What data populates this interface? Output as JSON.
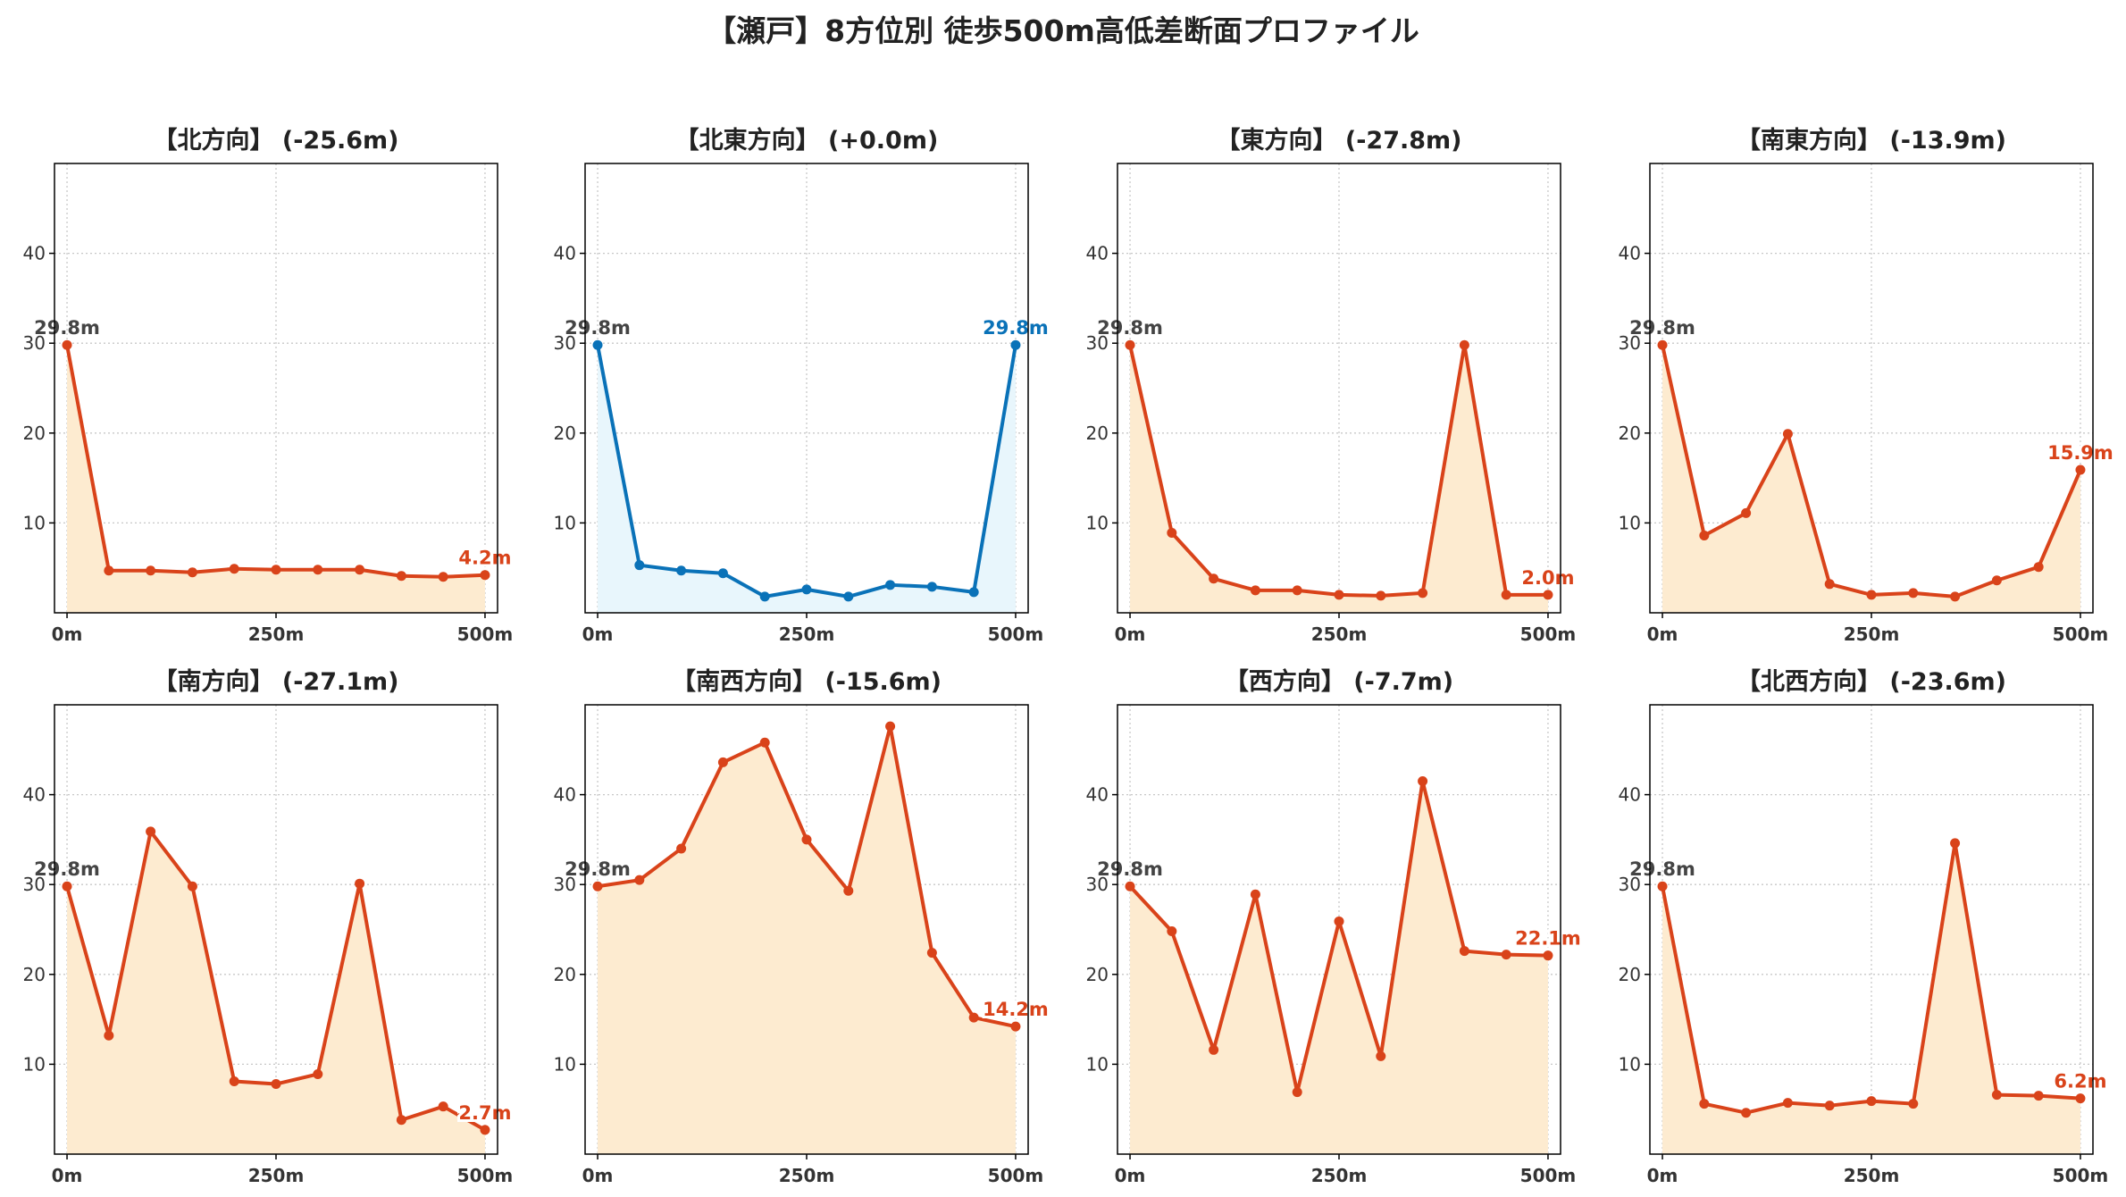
{
  "title": "【瀬戸】8方位別 徒歩500m高低差断面プロファイル",
  "colors": {
    "down_line": "#d9431a",
    "down_fill": "#fdebd0",
    "flat_line": "#0a72b8",
    "flat_fill": "#e8f6fc",
    "start_label": "#444444"
  },
  "chart_data": [
    {
      "type": "area",
      "title": "【北方向】 (-25.6m)",
      "tone": "down",
      "x": [
        0,
        50,
        100,
        150,
        200,
        250,
        300,
        350,
        400,
        450,
        500
      ],
      "y": [
        29.8,
        4.7,
        4.7,
        4.5,
        4.9,
        4.8,
        4.8,
        4.8,
        4.1,
        4.0,
        4.2
      ],
      "start_label": "29.8m",
      "end_label": "4.2m",
      "xticks": [
        "0m",
        "250m",
        "500m"
      ],
      "yticks": [
        10,
        20,
        30,
        40
      ],
      "ylim": [
        0,
        50
      ],
      "xlim": [
        -15,
        515
      ],
      "grid": true
    },
    {
      "type": "area",
      "title": "【北東方向】 (+0.0m)",
      "tone": "flat",
      "x": [
        0,
        50,
        100,
        150,
        200,
        250,
        300,
        350,
        400,
        450,
        500
      ],
      "y": [
        29.8,
        5.3,
        4.7,
        4.4,
        1.8,
        2.6,
        1.8,
        3.1,
        2.9,
        2.3,
        29.8
      ],
      "start_label": "29.8m",
      "end_label": "29.8m",
      "xticks": [
        "0m",
        "250m",
        "500m"
      ],
      "yticks": [
        10,
        20,
        30,
        40
      ],
      "ylim": [
        0,
        50
      ],
      "xlim": [
        -15,
        515
      ],
      "grid": true
    },
    {
      "type": "area",
      "title": "【東方向】 (-27.8m)",
      "tone": "down",
      "x": [
        0,
        50,
        100,
        150,
        200,
        250,
        300,
        350,
        400,
        450,
        500
      ],
      "y": [
        29.8,
        8.9,
        3.8,
        2.5,
        2.5,
        2.0,
        1.9,
        2.2,
        29.8,
        2.0,
        2.0
      ],
      "start_label": "29.8m",
      "end_label": "2.0m",
      "xticks": [
        "0m",
        "250m",
        "500m"
      ],
      "yticks": [
        10,
        20,
        30,
        40
      ],
      "ylim": [
        0,
        50
      ],
      "xlim": [
        -15,
        515
      ],
      "grid": true
    },
    {
      "type": "area",
      "title": "【南東方向】 (-13.9m)",
      "tone": "down",
      "x": [
        0,
        50,
        100,
        150,
        200,
        250,
        300,
        350,
        400,
        450,
        500
      ],
      "y": [
        29.8,
        8.6,
        11.1,
        19.9,
        3.2,
        2.0,
        2.2,
        1.8,
        3.6,
        5.1,
        15.9
      ],
      "start_label": "29.8m",
      "end_label": "15.9m",
      "xticks": [
        "0m",
        "250m",
        "500m"
      ],
      "yticks": [
        10,
        20,
        30,
        40
      ],
      "ylim": [
        0,
        50
      ],
      "xlim": [
        -15,
        515
      ],
      "grid": true
    },
    {
      "type": "area",
      "title": "【南方向】 (-27.1m)",
      "tone": "down",
      "x": [
        0,
        50,
        100,
        150,
        200,
        250,
        300,
        350,
        400,
        450,
        500
      ],
      "y": [
        29.8,
        13.2,
        35.9,
        29.8,
        8.1,
        7.8,
        8.9,
        30.1,
        3.8,
        5.3,
        2.7
      ],
      "start_label": "29.8m",
      "end_label": "2.7m",
      "xticks": [
        "0m",
        "250m",
        "500m"
      ],
      "yticks": [
        10,
        20,
        30,
        40
      ],
      "ylim": [
        0,
        50
      ],
      "xlim": [
        -15,
        515
      ],
      "grid": true
    },
    {
      "type": "area",
      "title": "【南西方向】 (-15.6m)",
      "tone": "down",
      "x": [
        0,
        50,
        100,
        150,
        200,
        250,
        300,
        350,
        400,
        450,
        500
      ],
      "y": [
        29.8,
        30.5,
        34.0,
        43.6,
        45.8,
        35.0,
        29.3,
        47.6,
        22.4,
        15.2,
        14.2
      ],
      "start_label": "29.8m",
      "end_label": "14.2m",
      "xticks": [
        "0m",
        "250m",
        "500m"
      ],
      "yticks": [
        10,
        20,
        30,
        40
      ],
      "ylim": [
        0,
        50
      ],
      "xlim": [
        -15,
        515
      ],
      "grid": true
    },
    {
      "type": "area",
      "title": "【西方向】 (-7.7m)",
      "tone": "down",
      "x": [
        0,
        50,
        100,
        150,
        200,
        250,
        300,
        350,
        400,
        450,
        500
      ],
      "y": [
        29.8,
        24.8,
        11.6,
        28.9,
        6.9,
        25.9,
        10.9,
        41.5,
        22.6,
        22.2,
        22.1
      ],
      "start_label": "29.8m",
      "end_label": "22.1m",
      "xticks": [
        "0m",
        "250m",
        "500m"
      ],
      "yticks": [
        10,
        20,
        30,
        40
      ],
      "ylim": [
        0,
        50
      ],
      "xlim": [
        -15,
        515
      ],
      "grid": true
    },
    {
      "type": "area",
      "title": "【北西方向】 (-23.6m)",
      "tone": "down",
      "x": [
        0,
        50,
        100,
        150,
        200,
        250,
        300,
        350,
        400,
        450,
        500
      ],
      "y": [
        29.8,
        5.6,
        4.6,
        5.7,
        5.4,
        5.9,
        5.6,
        34.6,
        6.6,
        6.5,
        6.2
      ],
      "start_label": "29.8m",
      "end_label": "6.2m",
      "xticks": [
        "0m",
        "250m",
        "500m"
      ],
      "yticks": [
        10,
        20,
        30,
        40
      ],
      "ylim": [
        0,
        50
      ],
      "xlim": [
        -15,
        515
      ],
      "grid": true
    }
  ]
}
